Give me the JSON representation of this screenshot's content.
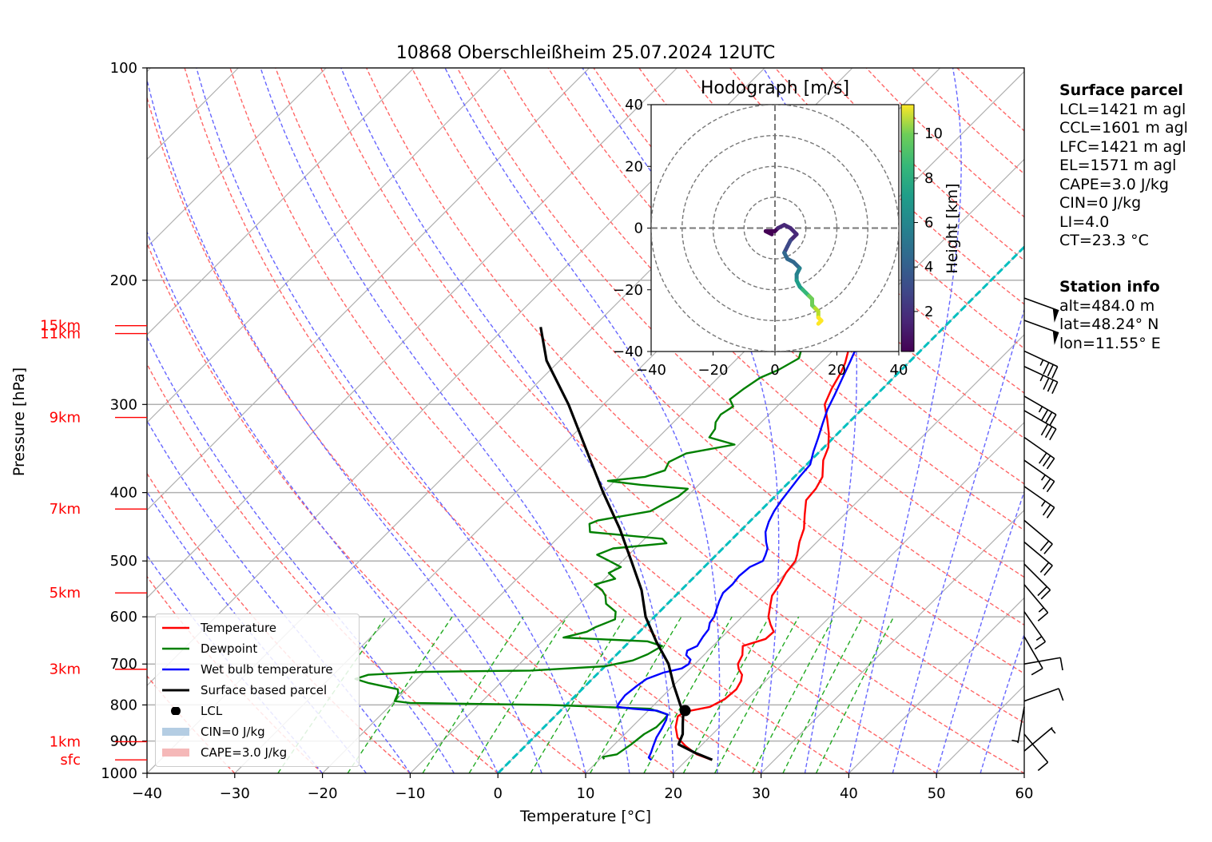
{
  "title": "10868 Oberschleißheim 25.07.2024 12UTC",
  "colors": {
    "temperature": "#ff0000",
    "dewpoint": "#008000",
    "wetbulb": "#0000ff",
    "parcel": "#000000",
    "dry_adiabat": "#ff6666",
    "moist_adiabat": "#6666ff",
    "mixing_ratio": "#22aa22",
    "zero_isotherm": "#00bfbf",
    "cin_fill": "#b4cde3",
    "cape_fill": "#f5b8b8"
  },
  "chart_data": {
    "type": "skew-t log-p",
    "xlabel": "Temperature [°C]",
    "ylabel": "Pressure [hPa]",
    "xlim": [
      -40,
      60
    ],
    "ylim": [
      1000,
      100
    ],
    "x_ticks": [
      "−40",
      "−30",
      "−20",
      "−10",
      "0",
      "10",
      "20",
      "30",
      "40",
      "50",
      "60"
    ],
    "y_ticks": [
      "100",
      "200",
      "300",
      "400",
      "500",
      "600",
      "700",
      "800",
      "900",
      "1000"
    ],
    "grid": true,
    "height_labels": [
      {
        "label": "15km",
        "p": 232
      },
      {
        "label": "11km",
        "p": 238
      },
      {
        "label": "9km",
        "p": 313
      },
      {
        "label": "7km",
        "p": 422
      },
      {
        "label": "5km",
        "p": 555
      },
      {
        "label": "3km",
        "p": 712
      },
      {
        "label": "1km",
        "p": 902
      },
      {
        "label": "sfc",
        "p": 957
      }
    ],
    "legend": {
      "placement": "lower-left",
      "entries": [
        {
          "label": "Temperature",
          "kind": "line",
          "color": "#ff0000"
        },
        {
          "label": "Dewpoint",
          "kind": "line",
          "color": "#008000"
        },
        {
          "label": "Wet bulb temperature",
          "kind": "line",
          "color": "#0000ff"
        },
        {
          "label": "Surface based parcel",
          "kind": "line",
          "color": "#000000"
        },
        {
          "label": "LCL",
          "kind": "dot",
          "color": "#000000"
        },
        {
          "label": "CIN=0 J/kg",
          "kind": "patch",
          "color": "#b4cde3"
        },
        {
          "label": "CAPE=3.0 J/kg",
          "kind": "patch",
          "color": "#f5b8b8"
        }
      ]
    },
    "series": [
      {
        "name": "Temperature",
        "points": [
          [
            957,
            22.8
          ],
          [
            940,
            20.5
          ],
          [
            915,
            18.3
          ],
          [
            890,
            16.4
          ],
          [
            860,
            15.0
          ],
          [
            830,
            14.0
          ],
          [
            818,
            14.3
          ],
          [
            805,
            16.6
          ],
          [
            785,
            17.4
          ],
          [
            760,
            17.6
          ],
          [
            740,
            17.2
          ],
          [
            725,
            16.6
          ],
          [
            712,
            15.6
          ],
          [
            700,
            14.9
          ],
          [
            680,
            14.4
          ],
          [
            660,
            13.4
          ],
          [
            645,
            15.2
          ],
          [
            630,
            15.3
          ],
          [
            615,
            14.1
          ],
          [
            600,
            13.0
          ],
          [
            580,
            12.0
          ],
          [
            560,
            11.0
          ],
          [
            540,
            10.6
          ],
          [
            520,
            10.0
          ],
          [
            500,
            9.7
          ],
          [
            490,
            9.2
          ],
          [
            470,
            8.0
          ],
          [
            450,
            7.0
          ],
          [
            430,
            5.5
          ],
          [
            410,
            4.0
          ],
          [
            395,
            3.8
          ],
          [
            380,
            3.2
          ],
          [
            360,
            1.4
          ],
          [
            345,
            0.5
          ],
          [
            330,
            -1.0
          ],
          [
            315,
            -2.8
          ],
          [
            300,
            -4.8
          ],
          [
            285,
            -5.8
          ],
          [
            270,
            -6.6
          ],
          [
            262,
            -7.2
          ],
          [
            252,
            -8.2
          ],
          [
            240,
            -9.4
          ],
          [
            233,
            -10.2
          ]
        ]
      },
      {
        "name": "Dewpoint",
        "points": [
          [
            955,
            10.5
          ],
          [
            948,
            10.1
          ],
          [
            940,
            11.4
          ],
          [
            910,
            11.9
          ],
          [
            880,
            12.2
          ],
          [
            860,
            12.8
          ],
          [
            840,
            12.8
          ],
          [
            826,
            12.7
          ],
          [
            810,
            10.0
          ],
          [
            805,
            4.0
          ],
          [
            800,
            -2.0
          ],
          [
            795,
            -18.0
          ],
          [
            790,
            -20.0
          ],
          [
            770,
            -20.5
          ],
          [
            760,
            -21.0
          ],
          [
            745,
            -25.0
          ],
          [
            735,
            -27.0
          ],
          [
            725,
            -26.0
          ],
          [
            718,
            -20.0
          ],
          [
            715,
            -8.0
          ],
          [
            705,
            0.0
          ],
          [
            692,
            2.5
          ],
          [
            678,
            3.5
          ],
          [
            660,
            4.2
          ],
          [
            650,
            2.0
          ],
          [
            642,
            -8.0
          ],
          [
            630,
            -6.0
          ],
          [
            620,
            -5.5
          ],
          [
            605,
            -4.2
          ],
          [
            590,
            -5.0
          ],
          [
            575,
            -7.0
          ],
          [
            560,
            -8.0
          ],
          [
            550,
            -9.0
          ],
          [
            540,
            -10.5
          ],
          [
            530,
            -8.8
          ],
          [
            520,
            -10.2
          ],
          [
            510,
            -9.5
          ],
          [
            500,
            -11.5
          ],
          [
            490,
            -13.6
          ],
          [
            480,
            -12.5
          ],
          [
            472,
            -7.0
          ],
          [
            465,
            -8.0
          ],
          [
            455,
            -17.0
          ],
          [
            443,
            -18.0
          ],
          [
            438,
            -17.4
          ],
          [
            425,
            -12.5
          ],
          [
            415,
            -11.8
          ],
          [
            405,
            -11.0
          ],
          [
            395,
            -10.8
          ],
          [
            390,
            -16.6
          ],
          [
            385,
            -20.8
          ],
          [
            380,
            -17.0
          ],
          [
            372,
            -15.5
          ],
          [
            362,
            -16.0
          ],
          [
            352,
            -15.0
          ],
          [
            342,
            -10.5
          ],
          [
            334,
            -14.2
          ],
          [
            325,
            -14.5
          ],
          [
            318,
            -15.2
          ],
          [
            310,
            -15.5
          ],
          [
            302,
            -15.0
          ],
          [
            295,
            -16.2
          ],
          [
            285,
            -15.8
          ],
          [
            275,
            -15.2
          ],
          [
            268,
            -14.0
          ],
          [
            258,
            -13.0
          ],
          [
            250,
            -13.8
          ],
          [
            244,
            -15.2
          ],
          [
            236,
            -16.0
          ],
          [
            232,
            -16.5
          ]
        ]
      },
      {
        "name": "Wet bulb temperature",
        "points": [
          [
            958,
            16.0
          ],
          [
            950,
            15.4
          ],
          [
            935,
            15.1
          ],
          [
            915,
            14.6
          ],
          [
            890,
            14.0
          ],
          [
            865,
            13.6
          ],
          [
            840,
            13.1
          ],
          [
            825,
            12.6
          ],
          [
            815,
            11.0
          ],
          [
            810,
            8.0
          ],
          [
            805,
            6.0
          ],
          [
            795,
            5.8
          ],
          [
            775,
            5.6
          ],
          [
            750,
            5.9
          ],
          [
            735,
            6.2
          ],
          [
            720,
            7.4
          ],
          [
            710,
            9.0
          ],
          [
            700,
            9.3
          ],
          [
            690,
            9.0
          ],
          [
            680,
            8.0
          ],
          [
            670,
            7.6
          ],
          [
            660,
            8.2
          ],
          [
            650,
            8.0
          ],
          [
            640,
            7.8
          ],
          [
            625,
            7.6
          ],
          [
            612,
            7.0
          ],
          [
            600,
            6.8
          ],
          [
            585,
            6.2
          ],
          [
            570,
            5.6
          ],
          [
            555,
            5.1
          ],
          [
            540,
            5.2
          ],
          [
            525,
            5.0
          ],
          [
            510,
            5.2
          ],
          [
            500,
            6.0
          ],
          [
            490,
            5.6
          ],
          [
            480,
            5.1
          ],
          [
            470,
            4.2
          ],
          [
            455,
            3.0
          ],
          [
            440,
            2.2
          ],
          [
            425,
            1.6
          ],
          [
            410,
            1.2
          ],
          [
            395,
            0.9
          ],
          [
            380,
            0.6
          ],
          [
            365,
            0.4
          ],
          [
            350,
            -0.7
          ],
          [
            335,
            -1.7
          ],
          [
            320,
            -2.8
          ],
          [
            305,
            -3.9
          ],
          [
            290,
            -4.8
          ],
          [
            275,
            -5.8
          ],
          [
            262,
            -6.7
          ],
          [
            250,
            -7.6
          ],
          [
            240,
            -8.7
          ],
          [
            233,
            -9.6
          ]
        ]
      },
      {
        "name": "Surface based parcel",
        "points": [
          [
            957,
            22.9
          ],
          [
            935,
            20.1
          ],
          [
            910,
            17.3
          ],
          [
            880,
            16.6
          ],
          [
            850,
            15.4
          ],
          [
            820,
            14.2
          ],
          [
            800,
            13.0
          ],
          [
            750,
            10.0
          ],
          [
            700,
            7.0
          ],
          [
            650,
            3.0
          ],
          [
            600,
            -1.0
          ],
          [
            550,
            -4.5
          ],
          [
            500,
            -9.0
          ],
          [
            450,
            -14.0
          ],
          [
            400,
            -20.0
          ],
          [
            350,
            -26.5
          ],
          [
            300,
            -34.0
          ],
          [
            260,
            -41.5
          ],
          [
            233,
            -46.0
          ]
        ]
      }
    ],
    "lcl": {
      "p": 815,
      "t": 14.2
    },
    "hodograph": {
      "title": "Hodograph [m/s]",
      "xlim": [
        -40,
        40
      ],
      "ylim": [
        -40,
        40
      ],
      "x_ticks": [
        "−40",
        "−20",
        "0",
        "20",
        "40"
      ],
      "y_ticks": [
        "40",
        "20",
        "0",
        "−20",
        "−40"
      ],
      "rings": [
        10,
        20,
        30,
        40
      ],
      "colorbar_label": "Height [km]",
      "colorbar_ticks": [
        "10",
        "8",
        "6",
        "4",
        "2"
      ],
      "points": [
        [
          -1,
          -2,
          0.2
        ],
        [
          -3,
          -1,
          0.4
        ],
        [
          -1,
          -1,
          0.6
        ],
        [
          0,
          -1,
          0.8
        ],
        [
          1,
          0,
          1.0
        ],
        [
          3,
          1,
          1.3
        ],
        [
          5,
          0,
          1.6
        ],
        [
          7,
          -2,
          1.9
        ],
        [
          5,
          -4,
          2.2
        ],
        [
          4,
          -6,
          2.6
        ],
        [
          3,
          -8,
          3.0
        ],
        [
          4,
          -10,
          3.5
        ],
        [
          6,
          -11,
          4.0
        ],
        [
          8,
          -13,
          4.5
        ],
        [
          7,
          -15,
          5.0
        ],
        [
          7,
          -17,
          5.5
        ],
        [
          8,
          -19,
          6.0
        ],
        [
          9,
          -20,
          6.5
        ],
        [
          10,
          -21,
          7.0
        ],
        [
          11,
          -22,
          7.5
        ],
        [
          12,
          -23,
          8.0
        ],
        [
          12,
          -25,
          8.5
        ],
        [
          13,
          -26,
          9.0
        ],
        [
          14,
          -27,
          9.5
        ],
        [
          14,
          -29,
          10.0
        ],
        [
          15,
          -30,
          10.5
        ],
        [
          14,
          -31,
          11.0
        ]
      ]
    },
    "wind_barbs": [
      {
        "p": 212,
        "speed": 50,
        "dir": 250
      },
      {
        "p": 228,
        "speed": 50,
        "dir": 250
      },
      {
        "p": 252,
        "speed": 35,
        "dir": 245
      },
      {
        "p": 265,
        "speed": 35,
        "dir": 245
      },
      {
        "p": 292,
        "speed": 35,
        "dir": 240
      },
      {
        "p": 306,
        "speed": 30,
        "dir": 240
      },
      {
        "p": 334,
        "speed": 30,
        "dir": 235
      },
      {
        "p": 360,
        "speed": 25,
        "dir": 235
      },
      {
        "p": 392,
        "speed": 25,
        "dir": 235
      },
      {
        "p": 438,
        "speed": 20,
        "dir": 230
      },
      {
        "p": 470,
        "speed": 20,
        "dir": 230
      },
      {
        "p": 505,
        "speed": 20,
        "dir": 225
      },
      {
        "p": 540,
        "speed": 15,
        "dir": 220
      },
      {
        "p": 590,
        "speed": 15,
        "dir": 215
      },
      {
        "p": 640,
        "speed": 10,
        "dir": 210
      },
      {
        "p": 700,
        "speed": 10,
        "dir": 280
      },
      {
        "p": 790,
        "speed": 10,
        "dir": 290
      },
      {
        "p": 805,
        "speed": 5,
        "dir": 170
      },
      {
        "p": 880,
        "speed": 10,
        "dir": 220
      },
      {
        "p": 930,
        "speed": 5,
        "dir": 310
      }
    ]
  },
  "info_surface": {
    "heading": "Surface parcel",
    "lines": [
      "LCL=1421 m agl",
      "CCL=1601 m agl",
      "LFC=1421 m agl",
      "EL=1571 m agl",
      "CAPE=3.0 J/kg",
      "CIN=0 J/kg",
      "LI=4.0",
      "CT=23.3 °C"
    ]
  },
  "info_station": {
    "heading": "Station info",
    "lines": [
      "alt=484.0 m",
      "lat=48.24° N",
      "lon=11.55° E"
    ]
  }
}
